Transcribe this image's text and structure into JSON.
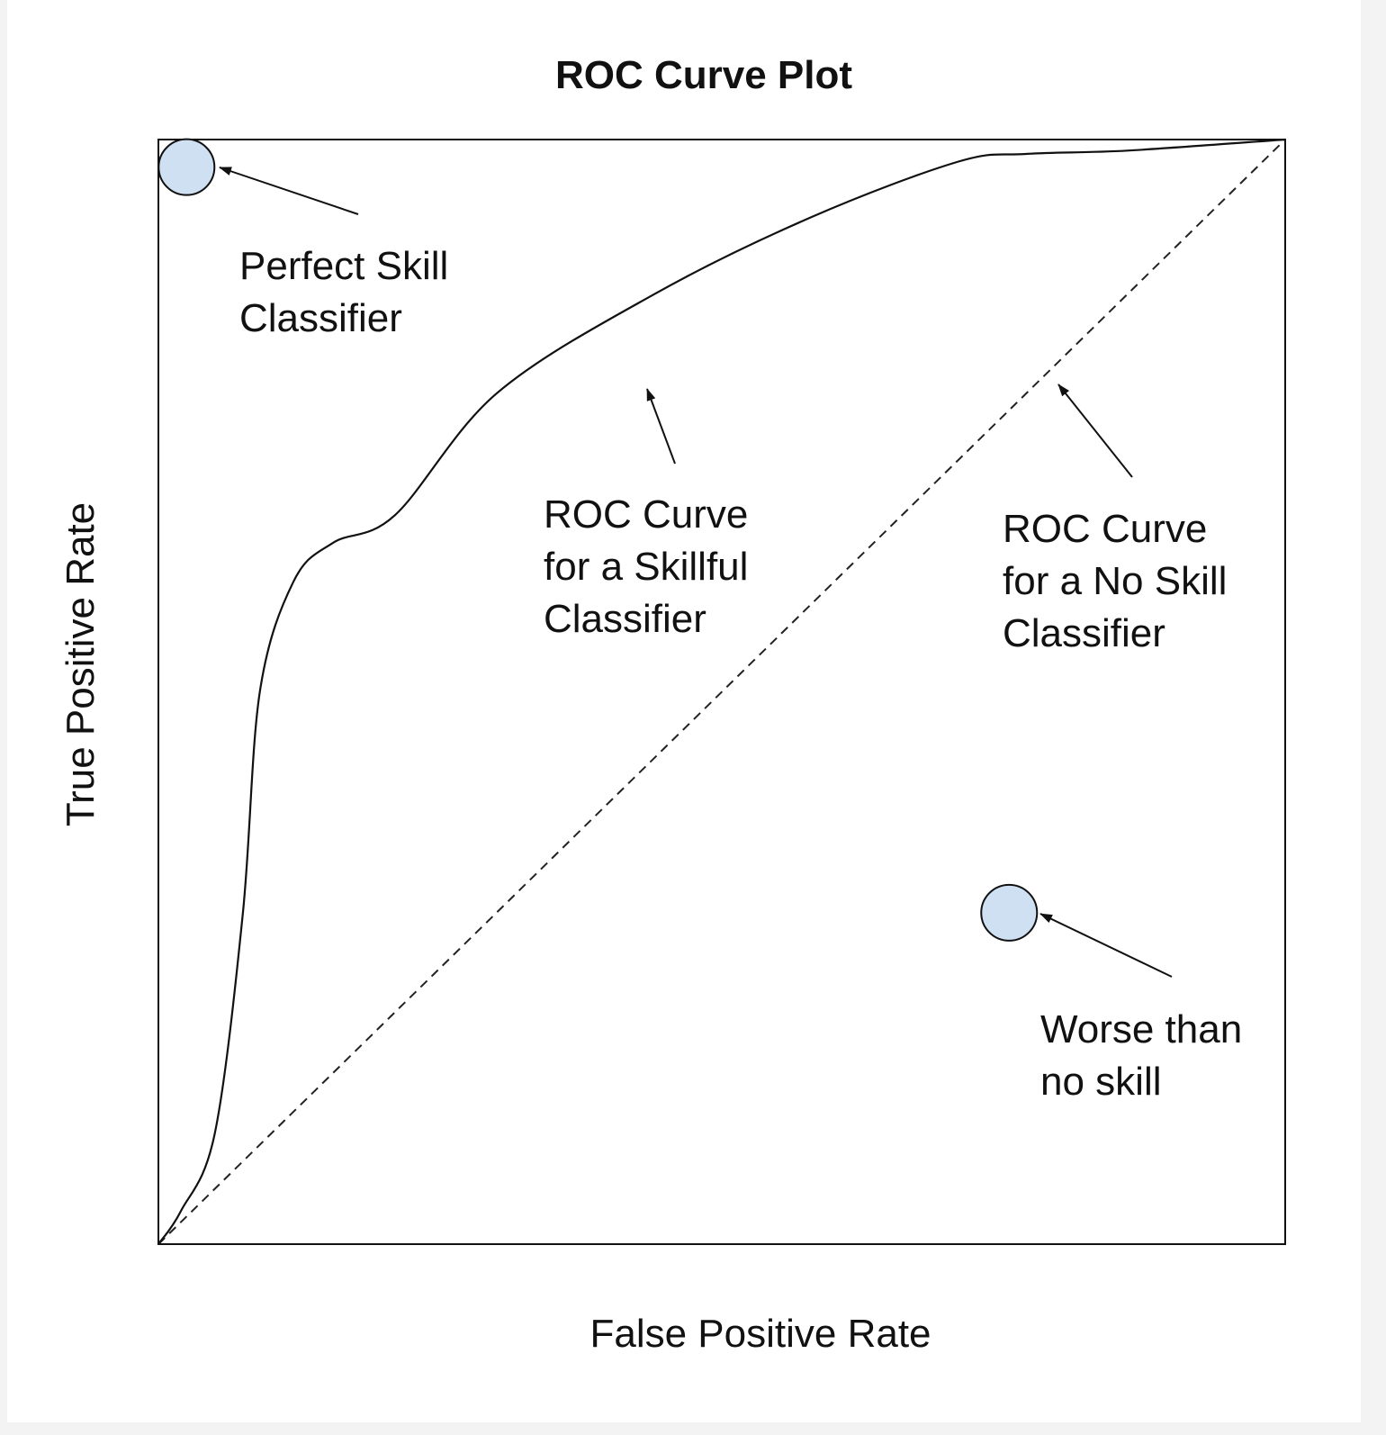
{
  "chart_data": {
    "type": "line",
    "title": "ROC Curve Plot",
    "xlabel": "False Positive Rate",
    "ylabel": "True Positive Rate",
    "xlim": [
      0,
      1
    ],
    "ylim": [
      0,
      1
    ],
    "grid": false,
    "series": [
      {
        "style": "solid",
        "points": [
          [
            0.0,
            0.0
          ],
          [
            0.02,
            0.03
          ],
          [
            0.05,
            0.1
          ],
          [
            0.075,
            0.3
          ],
          [
            0.09,
            0.5
          ],
          [
            0.12,
            0.6
          ],
          [
            0.155,
            0.635
          ],
          [
            0.21,
            0.66
          ],
          [
            0.3,
            0.77
          ],
          [
            0.44,
            0.86
          ],
          [
            0.58,
            0.93
          ],
          [
            0.71,
            0.98
          ],
          [
            0.77,
            0.987
          ],
          [
            0.86,
            0.99
          ],
          [
            1.0,
            1.0
          ]
        ]
      },
      {
        "style": "dashed",
        "points": [
          [
            0,
            0
          ],
          [
            1,
            1
          ]
        ]
      }
    ],
    "markers": [
      {
        "x": 0.025,
        "y": 0.975,
        "color": "#cfe0f3"
      },
      {
        "x": 0.755,
        "y": 0.3,
        "color": "#cfe0f3"
      }
    ],
    "annotations": [
      {
        "lines": [
          "Perfect Skill",
          "Classifier"
        ]
      },
      {
        "lines": [
          "ROC Curve",
          "for a Skillful",
          "Classifier"
        ]
      },
      {
        "lines": [
          "ROC Curve",
          "for a No Skill",
          "Classifier"
        ]
      },
      {
        "lines": [
          "Worse than",
          "no skill"
        ]
      }
    ]
  }
}
